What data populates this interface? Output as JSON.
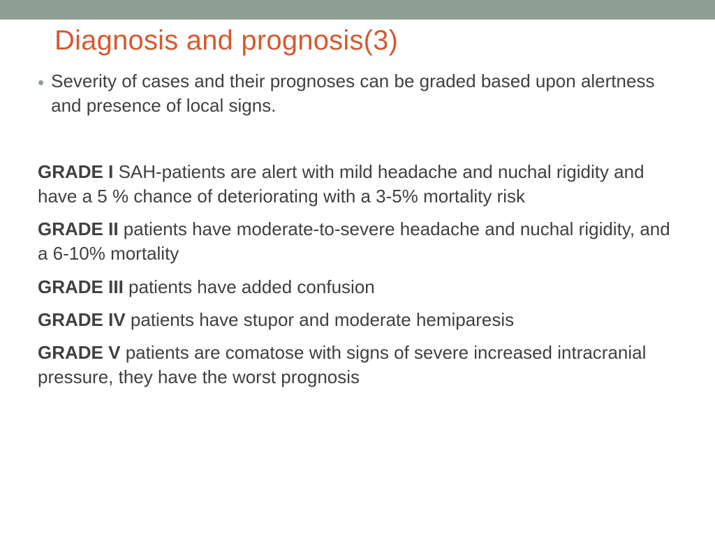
{
  "slide": {
    "title": "Diagnosis and prognosis(3)",
    "title_color": "#d45b31",
    "body_color": "#404040",
    "bullet_color": "#8e9e95",
    "top_bar_color": "#8e9e95",
    "background_color": "#ffffff",
    "title_fontsize": 40,
    "body_fontsize": 26,
    "intro_bullet": "Severity of cases and their prognoses can be graded based upon alertness and presence of local signs.",
    "grades": [
      {
        "label": "GRADE I",
        "text": " SAH-patients are alert with mild headache and nuchal rigidity and have a 5 % chance of deteriorating with a 3-5% mortality risk"
      },
      {
        "label": "GRADE II",
        "text": " patients have moderate-to-severe headache and nuchal rigidity, and a 6-10% mortality"
      },
      {
        "label": "GRADE III",
        "text": " patients have added confusion"
      },
      {
        "label": "GRADE IV",
        "text": " patients have stupor and moderate hemiparesis"
      },
      {
        "label": "GRADE V",
        "text": " patients are comatose with signs of severe increased intracranial pressure, they have the worst prognosis"
      }
    ]
  }
}
